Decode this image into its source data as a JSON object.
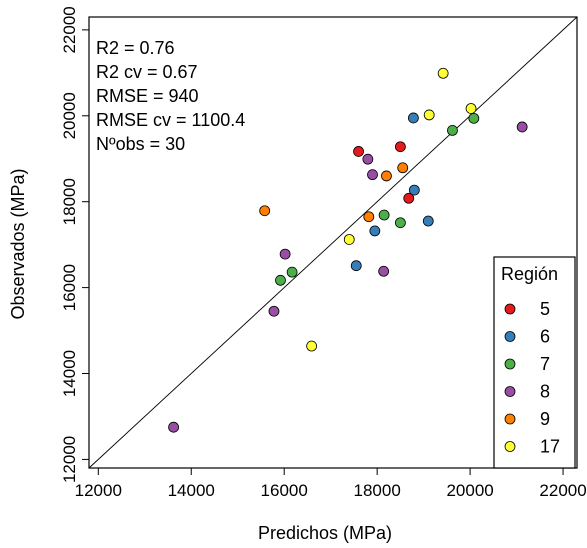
{
  "chart_data": {
    "type": "scatter",
    "title": "",
    "xlabel": "Predichos (MPa)",
    "ylabel": "Observados (MPa)",
    "xlim": [
      11800,
      22300
    ],
    "ylim": [
      11800,
      22300
    ],
    "x_ticks": [
      12000,
      14000,
      16000,
      18000,
      20000,
      22000
    ],
    "y_ticks": [
      12000,
      14000,
      16000,
      18000,
      20000,
      22000
    ],
    "reference_line": "1:1",
    "grid": false,
    "stats": [
      "R2 =  0.76",
      "R2 cv =  0.67",
      "RMSE =  940",
      "RMSE cv =  1100.4",
      "Nºobs = 30"
    ],
    "legend": {
      "title": "Región",
      "position": "bottom-right",
      "entries": [
        {
          "label": "5",
          "color": "#e41a1c"
        },
        {
          "label": "6",
          "color": "#377eb8"
        },
        {
          "label": "7",
          "color": "#4daf4a"
        },
        {
          "label": "8",
          "color": "#984ea3"
        },
        {
          "label": "9",
          "color": "#ff7f00"
        },
        {
          "label": "17",
          "color": "#ffff33"
        }
      ]
    },
    "series": [
      {
        "name": "5",
        "color": "#e41a1c",
        "points": [
          [
            17600,
            19170
          ],
          [
            18500,
            19280
          ],
          [
            18680,
            18080
          ]
        ]
      },
      {
        "name": "6",
        "color": "#377eb8",
        "points": [
          [
            18780,
            19950
          ],
          [
            18800,
            18270
          ],
          [
            19100,
            17550
          ],
          [
            17950,
            17320
          ],
          [
            17550,
            16510
          ]
        ]
      },
      {
        "name": "7",
        "color": "#4daf4a",
        "points": [
          [
            19620,
            19660
          ],
          [
            20080,
            19940
          ],
          [
            18150,
            17690
          ],
          [
            18500,
            17510
          ],
          [
            16170,
            16360
          ],
          [
            15920,
            16170
          ]
        ]
      },
      {
        "name": "8",
        "color": "#984ea3",
        "points": [
          [
            21120,
            19740
          ],
          [
            17800,
            18990
          ],
          [
            17900,
            18630
          ],
          [
            16020,
            16780
          ],
          [
            18140,
            16380
          ],
          [
            15780,
            15450
          ],
          [
            13620,
            12750
          ]
        ]
      },
      {
        "name": "9",
        "color": "#ff7f00",
        "points": [
          [
            18550,
            18790
          ],
          [
            18200,
            18600
          ],
          [
            17820,
            17650
          ],
          [
            15580,
            17790
          ]
        ]
      },
      {
        "name": "17",
        "color": "#ffff33",
        "points": [
          [
            19420,
            20990
          ],
          [
            20020,
            20170
          ],
          [
            19120,
            20020
          ],
          [
            17400,
            17120
          ],
          [
            16590,
            14640
          ]
        ]
      }
    ]
  }
}
